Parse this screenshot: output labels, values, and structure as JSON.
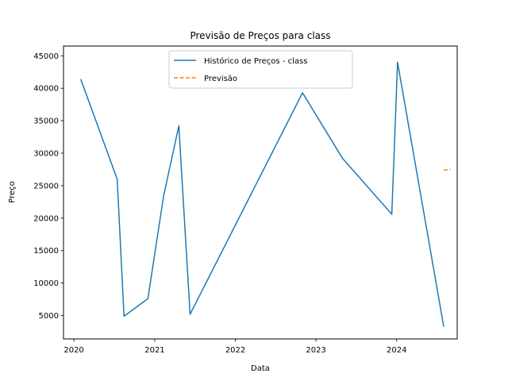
{
  "chart_data": {
    "type": "line",
    "title": "Previsão de Preços para class",
    "xlabel": "Data",
    "ylabel": "Preço",
    "xlim": [
      "2019-11-15",
      "2024-10-01"
    ],
    "ylim": [
      1400,
      46500
    ],
    "x_ticks": [
      {
        "date": "2020-01-01",
        "label": "2020"
      },
      {
        "date": "2021-01-01",
        "label": "2021"
      },
      {
        "date": "2022-01-01",
        "label": "2022"
      },
      {
        "date": "2023-01-01",
        "label": "2023"
      },
      {
        "date": "2024-01-01",
        "label": "2024"
      }
    ],
    "y_ticks": [
      5000,
      10000,
      15000,
      20000,
      25000,
      30000,
      35000,
      40000,
      45000
    ],
    "grid": false,
    "legend_position": "top-center",
    "series": [
      {
        "name": "Histórico de Preços - class",
        "style": "solid",
        "color": "#1f77b4",
        "points": [
          {
            "x": "2020-02-01",
            "y": 41400
          },
          {
            "x": "2020-07-15",
            "y": 26000
          },
          {
            "x": "2020-08-15",
            "y": 4900
          },
          {
            "x": "2020-12-01",
            "y": 7600
          },
          {
            "x": "2021-02-10",
            "y": 23400
          },
          {
            "x": "2021-04-20",
            "y": 34200
          },
          {
            "x": "2021-06-10",
            "y": 5200
          },
          {
            "x": "2022-11-01",
            "y": 39300
          },
          {
            "x": "2023-05-01",
            "y": 29200
          },
          {
            "x": "2023-12-10",
            "y": 20600
          },
          {
            "x": "2024-01-05",
            "y": 44000
          },
          {
            "x": "2024-08-01",
            "y": 3300
          }
        ]
      },
      {
        "name": "Previsão",
        "style": "dashed",
        "color": "#ff7f0e",
        "points": [
          {
            "x": "2024-08-01",
            "y": 27400
          },
          {
            "x": "2024-08-15",
            "y": 27450
          },
          {
            "x": "2024-09-01",
            "y": 27500
          }
        ]
      }
    ]
  }
}
